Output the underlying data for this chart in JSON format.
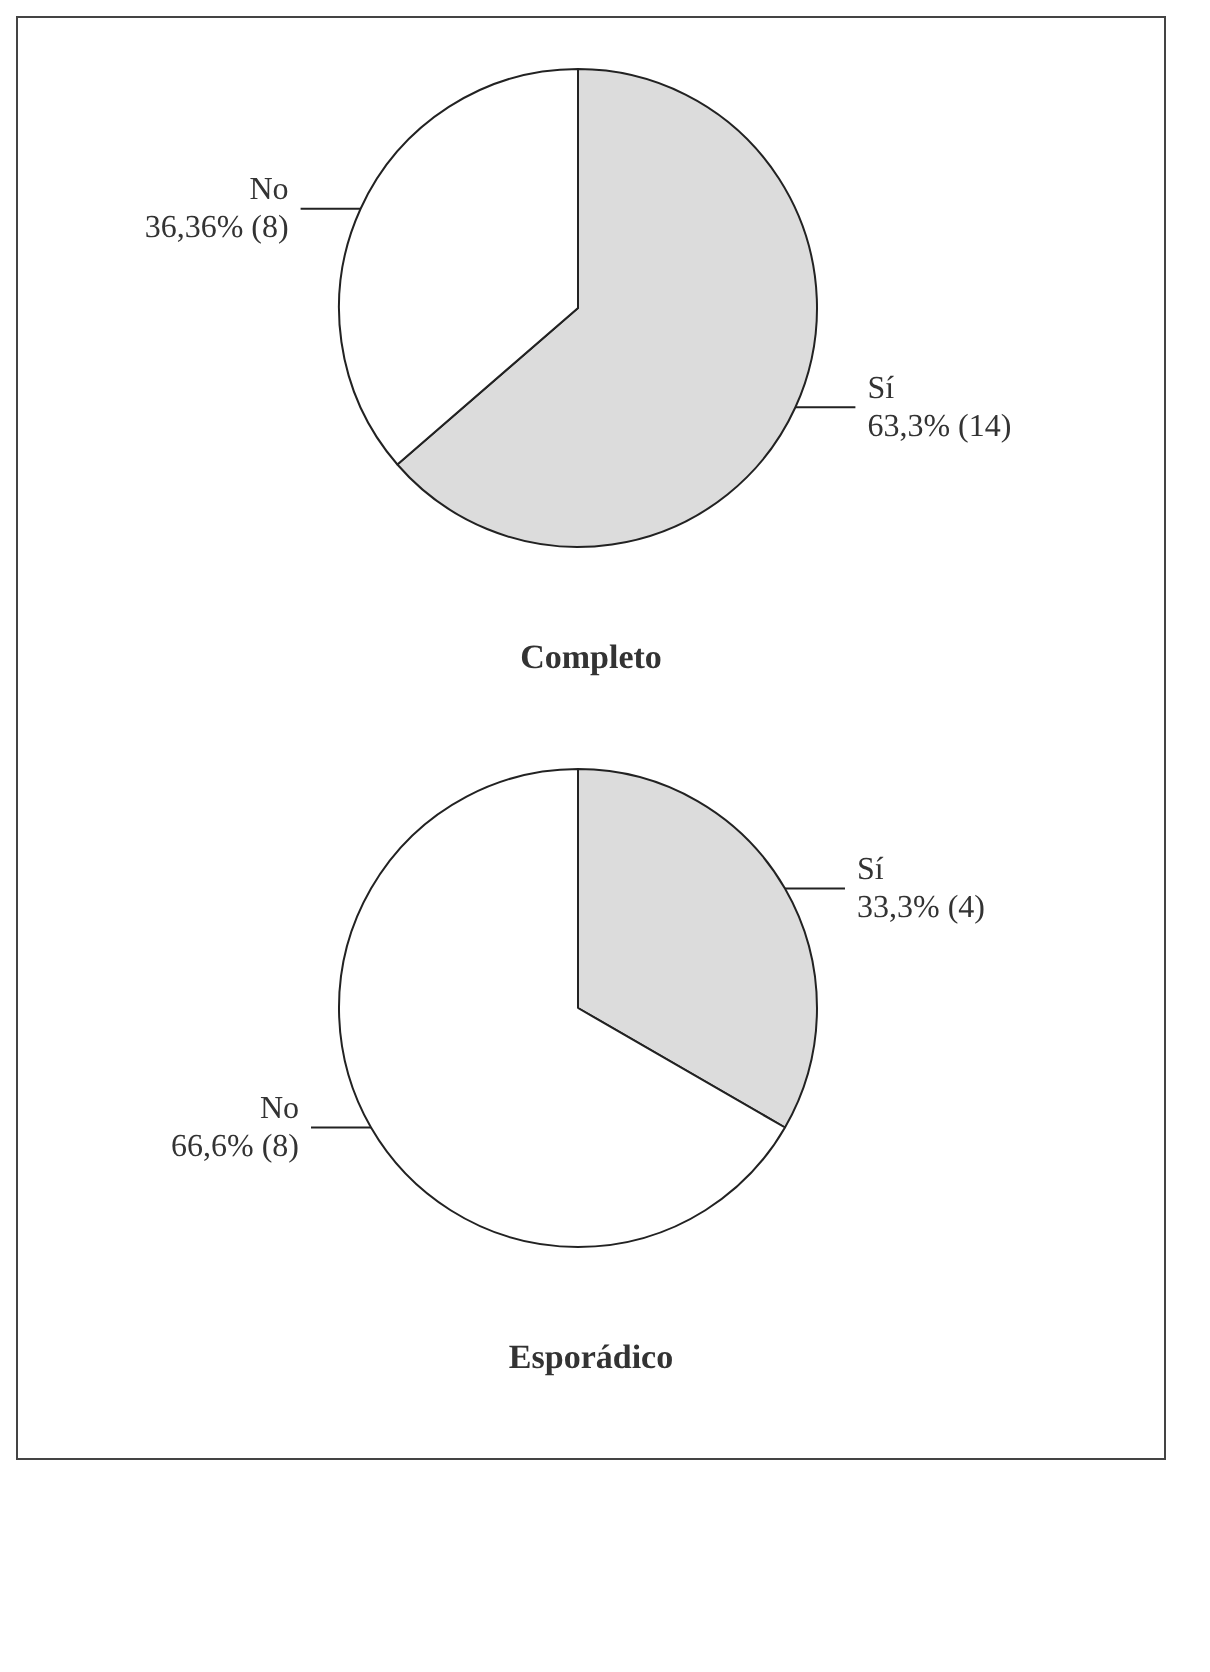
{
  "chart_data": [
    {
      "type": "pie",
      "title": "Completo",
      "categories": [
        "Sí",
        "No"
      ],
      "values": [
        14,
        8
      ],
      "value_labels": [
        "63,3% (14)",
        "36,36% (8)"
      ],
      "colors": [
        "#dcdcdc",
        "#ffffff"
      ]
    },
    {
      "type": "pie",
      "title": "Esporádico",
      "categories": [
        "Sí",
        "No"
      ],
      "values": [
        4,
        8
      ],
      "value_labels": [
        "33,3% (4)",
        "66,6% (8)"
      ],
      "colors": [
        "#dcdcdc",
        "#ffffff"
      ]
    }
  ]
}
